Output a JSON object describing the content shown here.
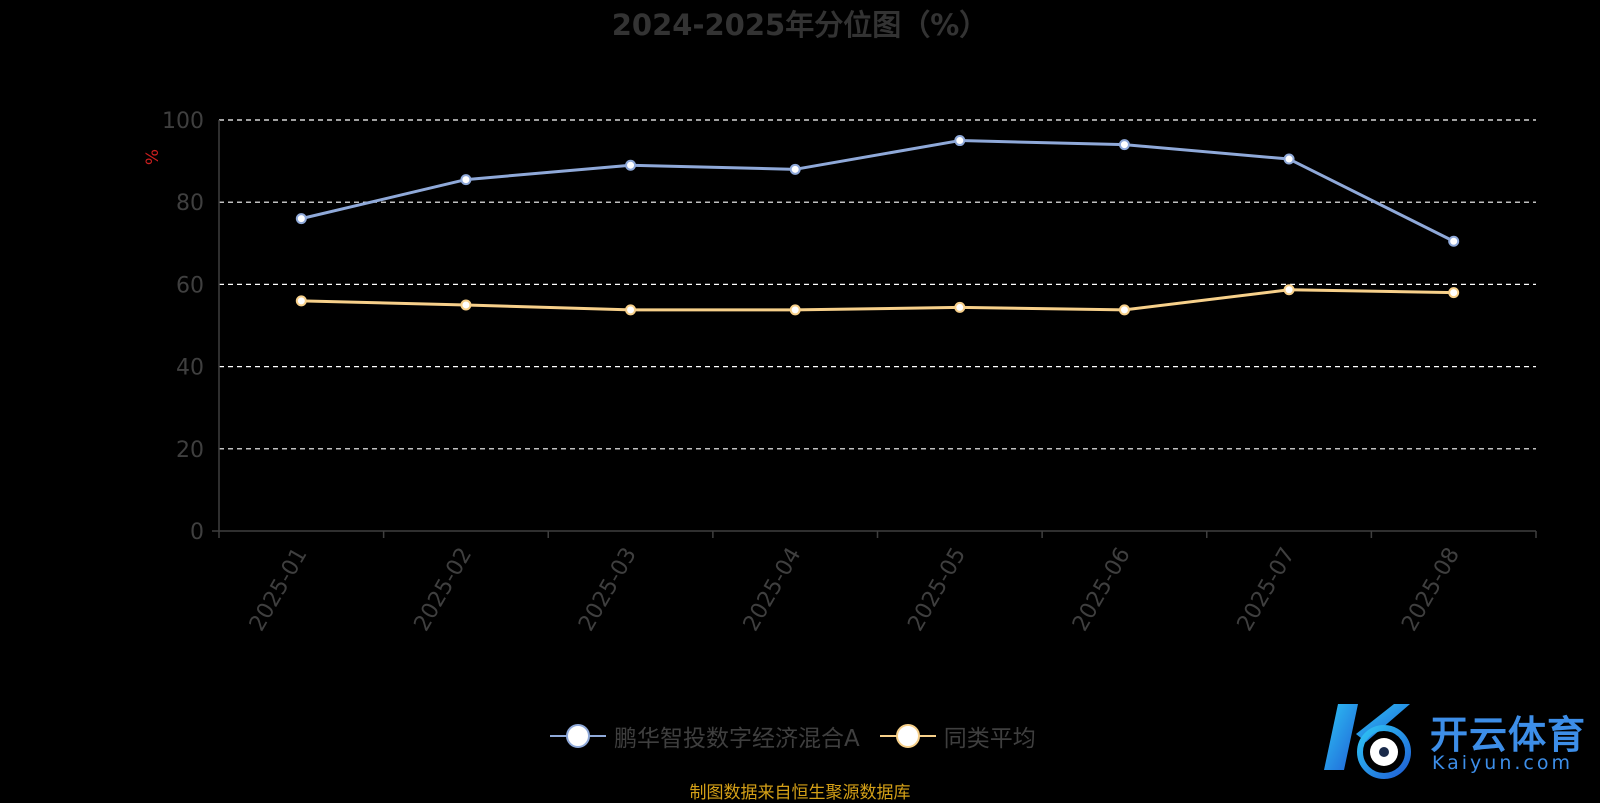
{
  "chart_data": {
    "type": "line",
    "title": "2024-2025年分位图（%）",
    "ylabel": "%",
    "xlabel": "",
    "categories": [
      "2025-01",
      "2025-02",
      "2025-03",
      "2025-04",
      "2025-05",
      "2025-06",
      "2025-07",
      "2025-08"
    ],
    "ylim": [
      0,
      100
    ],
    "yticks": [
      0,
      20,
      40,
      60,
      80,
      100
    ],
    "grid": true,
    "legend_position": "bottom-center",
    "series": [
      {
        "name": "鹏华智投数字经济混合A",
        "color": "#8fa9d9",
        "values": [
          76.0,
          85.5,
          89.0,
          88.0,
          95.0,
          94.0,
          90.5,
          70.5
        ]
      },
      {
        "name": "同类平均",
        "color": "#f7d08a",
        "values": [
          56.0,
          55.0,
          53.8,
          53.8,
          54.4,
          53.8,
          58.7,
          58.0
        ]
      }
    ]
  },
  "source_note": "制图数据来自恒生聚源数据库",
  "watermark": {
    "cn": "开云体育",
    "en": "Kaiyun.com"
  }
}
